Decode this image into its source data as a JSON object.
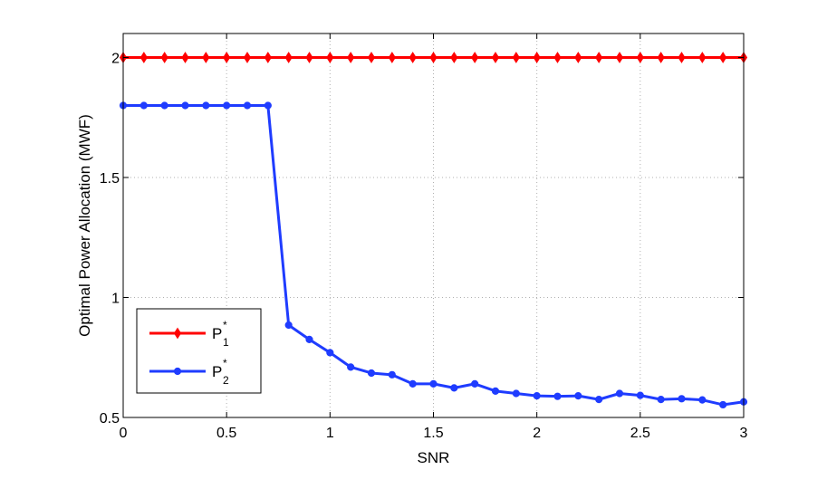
{
  "chart_data": {
    "type": "line",
    "title": "",
    "xlabel": "SNR",
    "ylabel": "Optimal Power Allocation (MWF)",
    "xlim": [
      0,
      3
    ],
    "ylim": [
      0.5,
      2.1
    ],
    "xticks": [
      0,
      0.5,
      1,
      1.5,
      2,
      2.5,
      3
    ],
    "xtick_labels": [
      "0",
      "0.5",
      "1",
      "1.5",
      "2",
      "2.5",
      "3"
    ],
    "yticks": [
      0.5,
      1,
      1.5,
      2
    ],
    "ytick_labels": [
      "0.5",
      "1",
      "1.5",
      "2"
    ],
    "grid": true,
    "legend_position": "bottom-left",
    "x": [
      0,
      0.1,
      0.2,
      0.3,
      0.4,
      0.5,
      0.6,
      0.7,
      0.8,
      0.9,
      1.0,
      1.1,
      1.2,
      1.3,
      1.4,
      1.5,
      1.6,
      1.7,
      1.8,
      1.9,
      2.0,
      2.1,
      2.2,
      2.3,
      2.4,
      2.5,
      2.6,
      2.7,
      2.8,
      2.9,
      3.0
    ],
    "series": [
      {
        "name": "P",
        "sub": "1",
        "sup": "*",
        "color": "#ff0000",
        "marker": "diamond",
        "values": [
          2,
          2,
          2,
          2,
          2,
          2,
          2,
          2,
          2,
          2,
          2,
          2,
          2,
          2,
          2,
          2,
          2,
          2,
          2,
          2,
          2,
          2,
          2,
          2,
          2,
          2,
          2,
          2,
          2,
          2,
          2
        ]
      },
      {
        "name": "P",
        "sub": "2",
        "sup": "*",
        "color": "#1f3cff",
        "marker": "circle",
        "values": [
          1.8,
          1.8,
          1.8,
          1.8,
          1.8,
          1.8,
          1.8,
          1.8,
          0.885,
          0.825,
          0.77,
          0.71,
          0.685,
          0.678,
          0.64,
          0.64,
          0.623,
          0.64,
          0.61,
          0.6,
          0.59,
          0.588,
          0.59,
          0.575,
          0.6,
          0.592,
          0.575,
          0.578,
          0.573,
          0.553,
          0.565
        ]
      }
    ]
  }
}
